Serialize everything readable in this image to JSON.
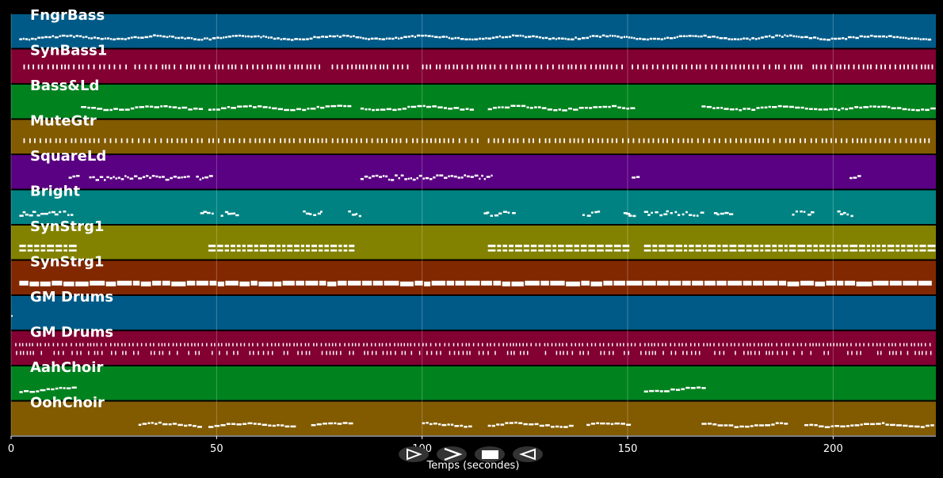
{
  "chart_data": {
    "type": "piano-roll",
    "xlabel": "Temps (secondes)",
    "xlim": [
      0,
      225
    ],
    "x_ticks": [
      0,
      50,
      100,
      150,
      200
    ],
    "grid": true,
    "tracks": [
      {
        "name": "FngrBass",
        "color": "#005a87",
        "style": "dense",
        "segments": [
          [
            2,
            224
          ]
        ]
      },
      {
        "name": "SynBass1",
        "color": "#820032",
        "style": "dashes",
        "segments": [
          [
            3,
            28
          ],
          [
            30,
            75
          ],
          [
            78,
            97
          ],
          [
            100,
            149
          ],
          [
            151,
            193
          ],
          [
            195,
            224
          ]
        ]
      },
      {
        "name": "Bass&Ld",
        "color": "#00821e",
        "style": "melody",
        "segments": [
          [
            17,
            46
          ],
          [
            48,
            82
          ],
          [
            85,
            112
          ],
          [
            116,
            151
          ],
          [
            168,
            224
          ]
        ]
      },
      {
        "name": "MuteGtr",
        "color": "#825a00",
        "style": "ticks",
        "segments": [
          [
            3,
            47
          ],
          [
            48,
            114
          ],
          [
            116,
            224
          ]
        ]
      },
      {
        "name": "SquareLd",
        "color": "#5a0082",
        "style": "lead",
        "segments": [
          [
            14,
            16
          ],
          [
            19,
            43
          ],
          [
            45,
            49
          ],
          [
            85,
            117
          ],
          [
            151,
            153
          ],
          [
            204,
            206
          ]
        ]
      },
      {
        "name": "Bright",
        "color": "#008282",
        "style": "sparse",
        "segments": [
          [
            2,
            15
          ],
          [
            46,
            49
          ],
          [
            51,
            55
          ],
          [
            71,
            76
          ],
          [
            82,
            85
          ],
          [
            115,
            122
          ],
          [
            139,
            143
          ],
          [
            149,
            152
          ],
          [
            154,
            168
          ],
          [
            171,
            175
          ],
          [
            190,
            195
          ],
          [
            201,
            205
          ]
        ]
      },
      {
        "name": "SynStrg1",
        "color": "#828200",
        "style": "chords",
        "segments": [
          [
            2,
            15
          ],
          [
            48,
            83
          ],
          [
            116,
            150
          ],
          [
            154,
            224
          ]
        ]
      },
      {
        "name": "SynStrg1",
        "color": "#822800",
        "style": "blocks",
        "segments": [
          [
            2,
            224
          ]
        ]
      },
      {
        "name": "GM Drums",
        "color": "#005a87",
        "style": "dot",
        "segments": [
          [
            0,
            0.5
          ]
        ]
      },
      {
        "name": "GM Drums",
        "color": "#820032",
        "style": "drums",
        "segments": [
          [
            1,
            224
          ]
        ]
      },
      {
        "name": "AahChoir",
        "color": "#00821e",
        "style": "melody",
        "segments": [
          [
            2,
            15
          ],
          [
            154,
            168
          ]
        ]
      },
      {
        "name": "OohChoir",
        "color": "#825a00",
        "style": "melody",
        "segments": [
          [
            31,
            46
          ],
          [
            48,
            68
          ],
          [
            73,
            83
          ],
          [
            100,
            112
          ],
          [
            116,
            137
          ],
          [
            140,
            151
          ],
          [
            168,
            189
          ],
          [
            193,
            224
          ]
        ]
      }
    ]
  },
  "controls": {
    "play_label": "⊳",
    "forward_label": ">",
    "stop_label": "■",
    "back_label": "⊲"
  }
}
